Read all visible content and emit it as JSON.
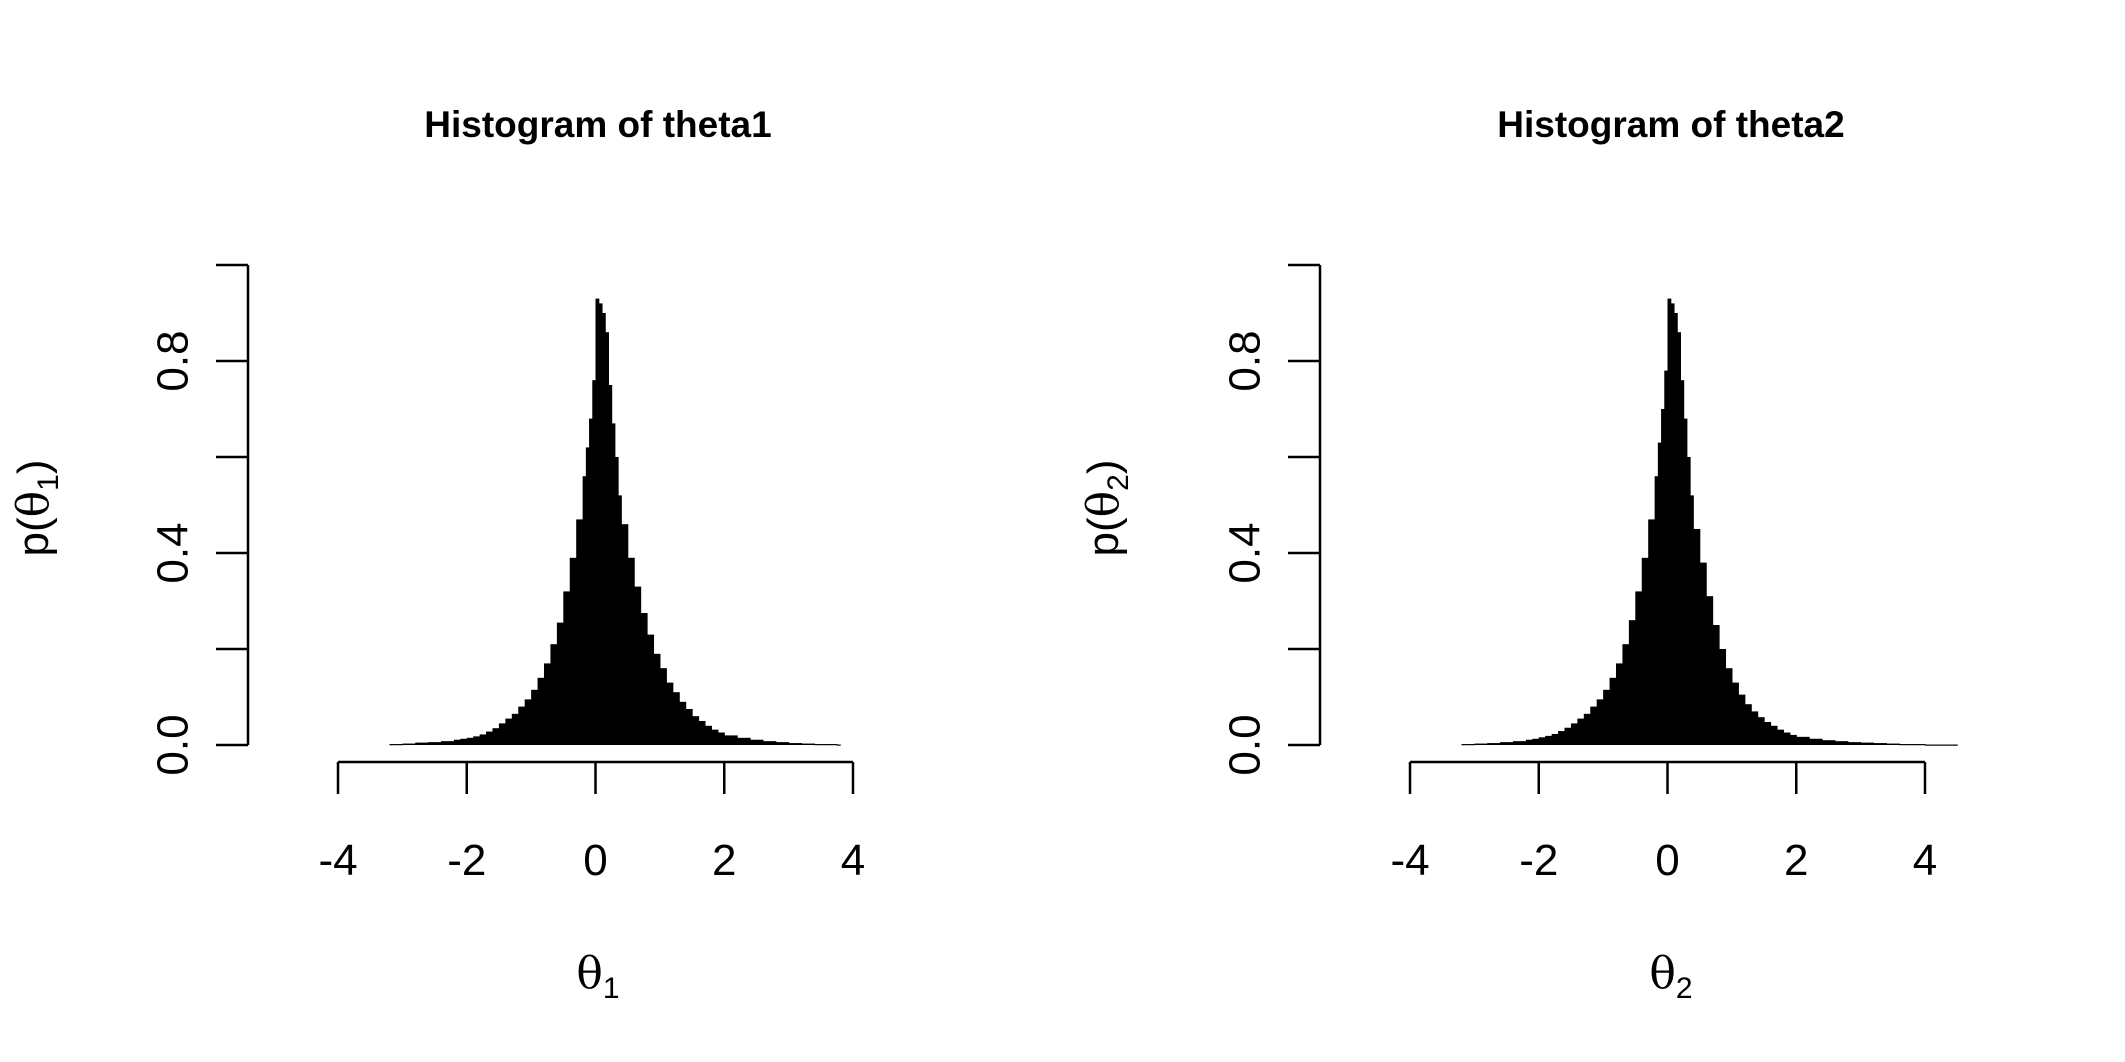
{
  "chart_data": [
    {
      "type": "bar",
      "title": "Histogram of theta1",
      "xlabel": {
        "symbol": "θ",
        "subscript": "1"
      },
      "ylabel": {
        "prefix": "p(",
        "symbol": "θ",
        "subscript": "1",
        "suffix": ")"
      },
      "xlim": [
        -4,
        4
      ],
      "ylim": [
        0,
        1
      ],
      "x_ticks": [
        -4,
        -2,
        0,
        2,
        4
      ],
      "x_tick_labels": [
        "-4",
        "-2",
        "0",
        "2",
        "4"
      ],
      "y_ticks": [
        0,
        0.2,
        0.4,
        0.6,
        0.8,
        1.0
      ],
      "y_tick_labels": [
        "0.0",
        "",
        "0.4",
        "",
        "0.8",
        ""
      ],
      "bin_width": 0.05,
      "bars": [
        [
          -3.2,
          0.002
        ],
        [
          -3.0,
          0.003
        ],
        [
          -2.8,
          0.005
        ],
        [
          -2.6,
          0.006
        ],
        [
          -2.4,
          0.008
        ],
        [
          -2.2,
          0.011
        ],
        [
          -2.1,
          0.013
        ],
        [
          -2.0,
          0.015
        ],
        [
          -1.9,
          0.018
        ],
        [
          -1.8,
          0.022
        ],
        [
          -1.7,
          0.028
        ],
        [
          -1.6,
          0.035
        ],
        [
          -1.5,
          0.045
        ],
        [
          -1.4,
          0.055
        ],
        [
          -1.3,
          0.065
        ],
        [
          -1.2,
          0.08
        ],
        [
          -1.1,
          0.095
        ],
        [
          -1.0,
          0.115
        ],
        [
          -0.9,
          0.14
        ],
        [
          -0.8,
          0.17
        ],
        [
          -0.7,
          0.21
        ],
        [
          -0.6,
          0.255
        ],
        [
          -0.5,
          0.32
        ],
        [
          -0.4,
          0.39
        ],
        [
          -0.3,
          0.47
        ],
        [
          -0.2,
          0.56
        ],
        [
          -0.15,
          0.62
        ],
        [
          -0.1,
          0.68
        ],
        [
          -0.05,
          0.76
        ],
        [
          0.0,
          0.93
        ],
        [
          0.05,
          0.92
        ],
        [
          0.1,
          0.9
        ],
        [
          0.15,
          0.86
        ],
        [
          0.2,
          0.75
        ],
        [
          0.25,
          0.67
        ],
        [
          0.3,
          0.6
        ],
        [
          0.35,
          0.52
        ],
        [
          0.4,
          0.46
        ],
        [
          0.5,
          0.39
        ],
        [
          0.6,
          0.33
        ],
        [
          0.7,
          0.275
        ],
        [
          0.8,
          0.23
        ],
        [
          0.9,
          0.19
        ],
        [
          1.0,
          0.16
        ],
        [
          1.1,
          0.13
        ],
        [
          1.2,
          0.11
        ],
        [
          1.3,
          0.09
        ],
        [
          1.4,
          0.075
        ],
        [
          1.5,
          0.06
        ],
        [
          1.6,
          0.05
        ],
        [
          1.7,
          0.04
        ],
        [
          1.8,
          0.032
        ],
        [
          1.9,
          0.026
        ],
        [
          2.0,
          0.02
        ],
        [
          2.2,
          0.015
        ],
        [
          2.4,
          0.011
        ],
        [
          2.6,
          0.008
        ],
        [
          2.8,
          0.006
        ],
        [
          3.0,
          0.004
        ],
        [
          3.2,
          0.003
        ],
        [
          3.4,
          0.002
        ],
        [
          3.6,
          0.002
        ],
        [
          3.75,
          0.001
        ]
      ]
    },
    {
      "type": "bar",
      "title": "Histogram of theta2",
      "xlabel": {
        "symbol": "θ",
        "subscript": "2"
      },
      "ylabel": {
        "prefix": "p(",
        "symbol": "θ",
        "subscript": "2",
        "suffix": ")"
      },
      "xlim": [
        -4,
        4
      ],
      "ylim": [
        0,
        1
      ],
      "x_ticks": [
        -4,
        -2,
        0,
        2,
        4
      ],
      "x_tick_labels": [
        "-4",
        "-2",
        "0",
        "2",
        "4"
      ],
      "y_ticks": [
        0,
        0.2,
        0.4,
        0.6,
        0.8,
        1.0
      ],
      "y_tick_labels": [
        "0.0",
        "",
        "0.4",
        "",
        "0.8",
        ""
      ],
      "bin_width": 0.05,
      "bars": [
        [
          -3.2,
          0.002
        ],
        [
          -3.0,
          0.003
        ],
        [
          -2.8,
          0.004
        ],
        [
          -2.6,
          0.006
        ],
        [
          -2.4,
          0.008
        ],
        [
          -2.2,
          0.011
        ],
        [
          -2.1,
          0.013
        ],
        [
          -2.0,
          0.016
        ],
        [
          -1.9,
          0.019
        ],
        [
          -1.8,
          0.023
        ],
        [
          -1.7,
          0.029
        ],
        [
          -1.6,
          0.036
        ],
        [
          -1.5,
          0.045
        ],
        [
          -1.4,
          0.055
        ],
        [
          -1.3,
          0.065
        ],
        [
          -1.2,
          0.08
        ],
        [
          -1.1,
          0.095
        ],
        [
          -1.0,
          0.115
        ],
        [
          -0.9,
          0.14
        ],
        [
          -0.8,
          0.17
        ],
        [
          -0.7,
          0.21
        ],
        [
          -0.6,
          0.26
        ],
        [
          -0.5,
          0.32
        ],
        [
          -0.4,
          0.39
        ],
        [
          -0.3,
          0.47
        ],
        [
          -0.2,
          0.56
        ],
        [
          -0.15,
          0.63
        ],
        [
          -0.1,
          0.7
        ],
        [
          -0.05,
          0.78
        ],
        [
          0.0,
          0.93
        ],
        [
          0.05,
          0.92
        ],
        [
          0.1,
          0.9
        ],
        [
          0.15,
          0.86
        ],
        [
          0.2,
          0.76
        ],
        [
          0.25,
          0.68
        ],
        [
          0.3,
          0.6
        ],
        [
          0.35,
          0.52
        ],
        [
          0.4,
          0.45
        ],
        [
          0.5,
          0.38
        ],
        [
          0.6,
          0.31
        ],
        [
          0.7,
          0.25
        ],
        [
          0.8,
          0.2
        ],
        [
          0.9,
          0.16
        ],
        [
          1.0,
          0.13
        ],
        [
          1.1,
          0.105
        ],
        [
          1.2,
          0.085
        ],
        [
          1.3,
          0.07
        ],
        [
          1.4,
          0.058
        ],
        [
          1.5,
          0.048
        ],
        [
          1.6,
          0.04
        ],
        [
          1.7,
          0.032
        ],
        [
          1.8,
          0.026
        ],
        [
          1.9,
          0.021
        ],
        [
          2.0,
          0.017
        ],
        [
          2.2,
          0.013
        ],
        [
          2.4,
          0.01
        ],
        [
          2.6,
          0.008
        ],
        [
          2.8,
          0.006
        ],
        [
          3.0,
          0.005
        ],
        [
          3.2,
          0.004
        ],
        [
          3.4,
          0.003
        ],
        [
          3.6,
          0.002
        ],
        [
          3.8,
          0.002
        ],
        [
          4.0,
          0.001
        ],
        [
          4.2,
          0.001
        ],
        [
          4.45,
          0.001
        ]
      ]
    }
  ]
}
